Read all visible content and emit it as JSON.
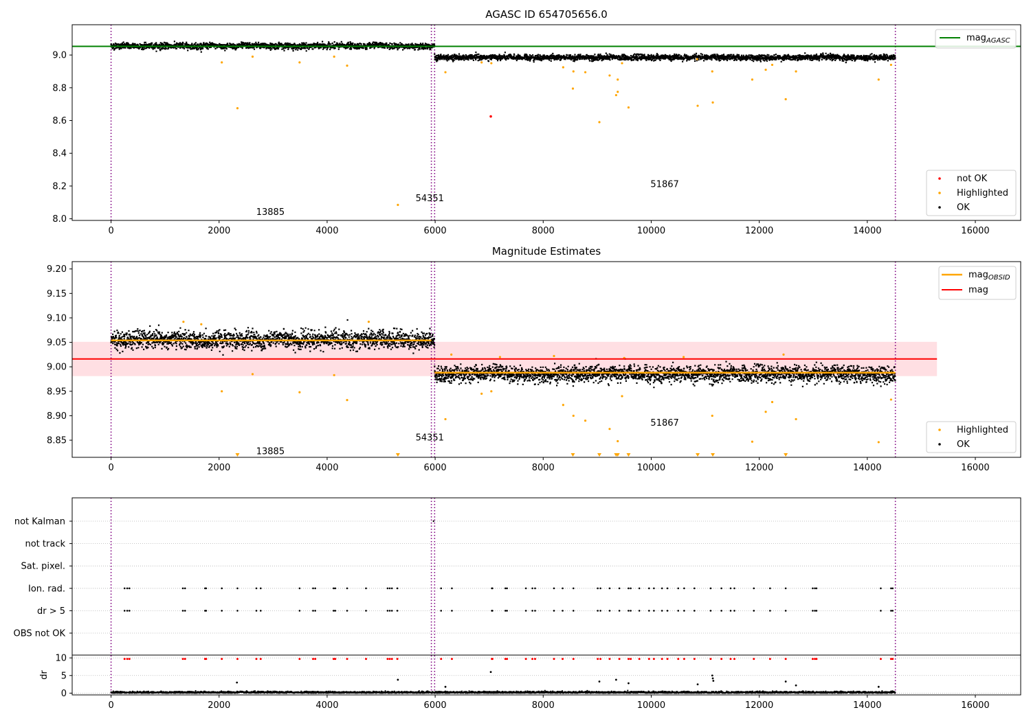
{
  "chart_data": [
    {
      "type": "scatter",
      "title": "AGASC ID 654705656.0",
      "xlabel": "",
      "ylabel": "",
      "xlim": [
        -720,
        16840
      ],
      "ylim": [
        7.99,
        9.185
      ],
      "xticks": [
        0,
        2000,
        4000,
        6000,
        8000,
        10000,
        12000,
        14000,
        16000
      ],
      "yticks": [
        8.0,
        8.2,
        8.4,
        8.6,
        8.8,
        9.0
      ],
      "ytick_labels": [
        "8.0",
        "8.2",
        "8.4",
        "8.6",
        "8.8",
        "9.0"
      ],
      "obsid_boundaries": [
        0,
        5930,
        5990,
        14520
      ],
      "obsid_labels": [
        {
          "text": "13885",
          "x": 2950,
          "y": 8.04
        },
        {
          "text": "54351",
          "x": 5900,
          "y": 8.125
        },
        {
          "text": "51867",
          "x": 10250,
          "y": 8.21
        }
      ],
      "mag_agasc": 9.053,
      "ok_segments": [
        {
          "x0": 0,
          "x1": 5990,
          "mean": 9.055,
          "spread": 0.012
        },
        {
          "x0": 5990,
          "x1": 14520,
          "mean": 8.985,
          "spread": 0.011
        }
      ],
      "highlighted": [
        [
          2340,
          8.675
        ],
        [
          5310,
          8.085
        ],
        [
          8550,
          8.795
        ],
        [
          9040,
          8.59
        ],
        [
          9350,
          8.755
        ],
        [
          9380,
          8.775
        ],
        [
          9580,
          8.68
        ],
        [
          10860,
          8.69
        ],
        [
          11140,
          8.71
        ],
        [
          12490,
          8.73
        ],
        [
          11870,
          8.85
        ],
        [
          14210,
          8.85
        ],
        [
          2050,
          8.955
        ],
        [
          2620,
          8.99
        ],
        [
          3490,
          8.955
        ],
        [
          4130,
          8.99
        ],
        [
          4370,
          8.935
        ],
        [
          6190,
          8.895
        ],
        [
          6860,
          8.955
        ],
        [
          7040,
          8.95
        ],
        [
          8370,
          8.925
        ],
        [
          8560,
          8.9
        ],
        [
          8780,
          8.895
        ],
        [
          9230,
          8.875
        ],
        [
          9380,
          8.85
        ],
        [
          9460,
          8.95
        ],
        [
          10850,
          8.975
        ],
        [
          11130,
          8.9
        ],
        [
          12120,
          8.91
        ],
        [
          12240,
          8.94
        ],
        [
          12680,
          8.9
        ],
        [
          14440,
          8.94
        ]
      ],
      "not_ok": [
        [
          7030,
          8.625
        ]
      ],
      "legend_upper": [
        {
          "label": "mag",
          "subscript": "AGASC",
          "color": "#008000"
        }
      ],
      "legend_lower": [
        {
          "label": "not OK",
          "color": "#ff0000"
        },
        {
          "label": "Highlighted",
          "color": "#ffa500"
        },
        {
          "label": "OK",
          "color": "#000000"
        }
      ]
    },
    {
      "type": "scatter",
      "title": "Magnitude Estimates",
      "xlabel": "",
      "ylabel": "",
      "xlim": [
        -720,
        16840
      ],
      "ylim": [
        8.815,
        9.215
      ],
      "xticks": [
        0,
        2000,
        4000,
        6000,
        8000,
        10000,
        12000,
        14000,
        16000
      ],
      "yticks": [
        8.85,
        8.9,
        8.95,
        9.0,
        9.05,
        9.1,
        9.15,
        9.2
      ],
      "ytick_labels": [
        "8.85",
        "8.90",
        "8.95",
        "9.00",
        "9.05",
        "9.10",
        "9.15",
        "9.20"
      ],
      "obsid_boundaries": [
        0,
        5930,
        5990,
        14520
      ],
      "obsid_labels": [
        {
          "text": "13885",
          "x": 2950,
          "y": 8.827
        },
        {
          "text": "54351",
          "x": 5900,
          "y": 8.855
        },
        {
          "text": "51867",
          "x": 10250,
          "y": 8.885
        }
      ],
      "mag": 9.016,
      "mag_band": [
        8.981,
        9.051
      ],
      "mag_band_xlim": [
        -720,
        15290
      ],
      "mag_obsid": [
        {
          "x0": 0,
          "x1": 5930,
          "value": 9.054
        },
        {
          "x0": 5990,
          "x1": 14520,
          "value": 8.988
        }
      ],
      "ok_segments": [
        {
          "x0": 0,
          "x1": 5990,
          "mean": 9.055,
          "spread": 0.012
        },
        {
          "x0": 5990,
          "x1": 14520,
          "mean": 8.985,
          "spread": 0.011
        }
      ],
      "highlighted": [
        [
          2050,
          8.95
        ],
        [
          2620,
          8.985
        ],
        [
          3490,
          8.948
        ],
        [
          4130,
          8.983
        ],
        [
          4370,
          8.932
        ],
        [
          6190,
          8.893
        ],
        [
          6860,
          8.945
        ],
        [
          7040,
          8.95
        ],
        [
          8370,
          8.922
        ],
        [
          8560,
          8.9
        ],
        [
          8780,
          8.89
        ],
        [
          9230,
          8.873
        ],
        [
          9380,
          8.848
        ],
        [
          9460,
          8.94
        ],
        [
          11130,
          8.9
        ],
        [
          11870,
          8.847
        ],
        [
          12120,
          8.908
        ],
        [
          12240,
          8.928
        ],
        [
          12680,
          8.893
        ],
        [
          14210,
          8.846
        ],
        [
          14440,
          8.933
        ],
        [
          1340,
          9.092
        ],
        [
          1670,
          9.087
        ],
        [
          4770,
          9.092
        ],
        [
          6300,
          9.025
        ],
        [
          7200,
          9.02
        ],
        [
          8200,
          9.022
        ],
        [
          9500,
          9.018
        ],
        [
          10600,
          9.02
        ],
        [
          12450,
          9.025
        ]
      ],
      "offscale_markers": [
        2340,
        5310,
        8550,
        9040,
        9350,
        9380,
        9580,
        10860,
        11140,
        12490
      ],
      "legend_upper": [
        {
          "label": "mag",
          "subscript": "OBSID",
          "color": "#ffa500"
        },
        {
          "label": "mag",
          "subscript": "",
          "color": "#ff0000"
        }
      ],
      "legend_lower": [
        {
          "label": "Highlighted",
          "color": "#ffa500"
        },
        {
          "label": "OK",
          "color": "#000000"
        }
      ]
    },
    {
      "type": "scatter",
      "title": "",
      "xlabel": "",
      "ylabel": "",
      "xlim": [
        -720,
        16840
      ],
      "flag_categories": [
        "not Kalman",
        "not track",
        "Sat. pixel.",
        "Ion. rad.",
        "dr > 5",
        "OBS not OK"
      ],
      "flag_events": [
        250,
        300,
        340,
        1330,
        1370,
        1740,
        1760,
        2050,
        2340,
        2690,
        2770,
        3490,
        3740,
        3780,
        4120,
        4150,
        4370,
        4720,
        5120,
        5160,
        5200,
        5300,
        6110,
        6310,
        7050,
        7060,
        7300,
        7330,
        7680,
        7800,
        7850,
        8200,
        8360,
        8560,
        9010,
        9060,
        9230,
        9410,
        9580,
        9620,
        9780,
        9960,
        10050,
        10200,
        10300,
        10500,
        10610,
        10800,
        11100,
        11300,
        11470,
        11540,
        11900,
        12200,
        12490,
        12990,
        13030,
        13060,
        14250,
        14440,
        14470
      ],
      "not_kalman_events": [
        5970
      ],
      "flag_x_range": [
        0,
        14520
      ],
      "dr": {
        "ylabel": "dr",
        "ylim": [
          -0.5,
          10.8
        ],
        "yticks": [
          0,
          5,
          10
        ],
        "ytick_labels": [
          "0",
          "5",
          "10"
        ],
        "typical": 0.2,
        "clip_value": 9.7,
        "spikes": [
          [
            2330,
            3.0
          ],
          [
            5310,
            3.8
          ],
          [
            6190,
            1.8
          ],
          [
            7030,
            6.0
          ],
          [
            9040,
            3.3
          ],
          [
            9350,
            3.8
          ],
          [
            9580,
            2.8
          ],
          [
            10860,
            2.5
          ],
          [
            11130,
            5.0
          ],
          [
            11140,
            4.2
          ],
          [
            11150,
            3.5
          ],
          [
            12490,
            3.3
          ],
          [
            12680,
            2.2
          ],
          [
            14210,
            1.8
          ]
        ]
      },
      "legend_upper": [],
      "legend_lower": []
    }
  ]
}
